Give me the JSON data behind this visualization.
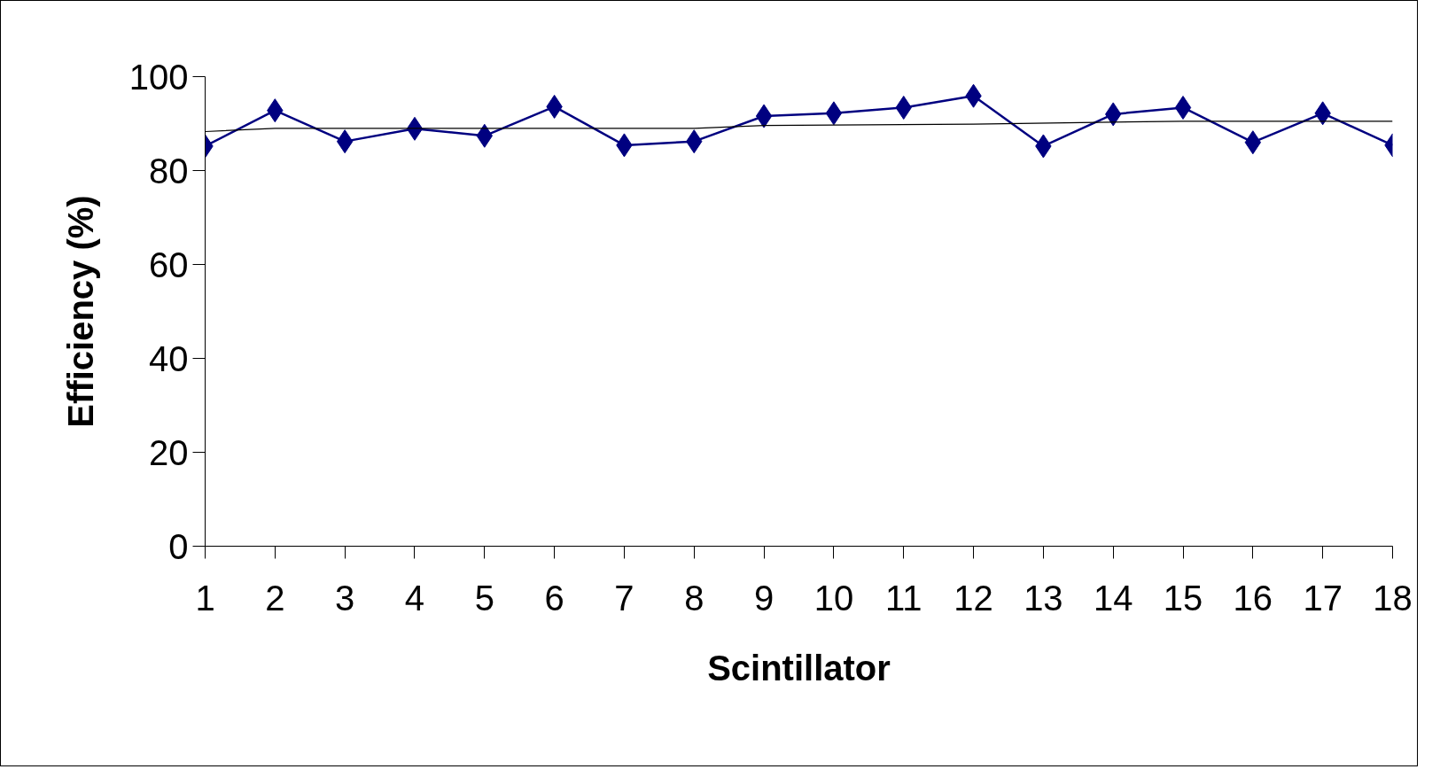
{
  "chart_data": {
    "type": "line",
    "xlabel": "Scintillator",
    "ylabel": "Efficiency (%)",
    "x": [
      1,
      2,
      3,
      4,
      5,
      6,
      7,
      8,
      9,
      10,
      11,
      12,
      13,
      14,
      15,
      16,
      17,
      18
    ],
    "xlim": [
      1,
      18
    ],
    "xticks": [
      1,
      2,
      3,
      4,
      5,
      6,
      7,
      8,
      9,
      10,
      11,
      12,
      13,
      14,
      15,
      16,
      17,
      18
    ],
    "ylim": [
      0,
      100
    ],
    "yticks": [
      0,
      20,
      40,
      60,
      80,
      100
    ],
    "grid": false,
    "series": [
      {
        "color": "#000080",
        "marker": "diamond",
        "values": [
          85.2,
          92.8,
          86.2,
          88.9,
          87.4,
          93.6,
          85.4,
          86.2,
          91.6,
          92.2,
          93.4,
          95.9,
          85.2,
          92.0,
          93.4,
          86.0,
          92.2,
          85.4
        ]
      },
      {
        "type": "line",
        "color": "#000000",
        "marker": "none",
        "x": [
          1,
          2,
          5,
          8,
          9,
          12,
          15,
          18
        ],
        "values": [
          88.3,
          89.0,
          89.0,
          89.0,
          89.6,
          89.9,
          90.5,
          90.5
        ]
      }
    ]
  }
}
